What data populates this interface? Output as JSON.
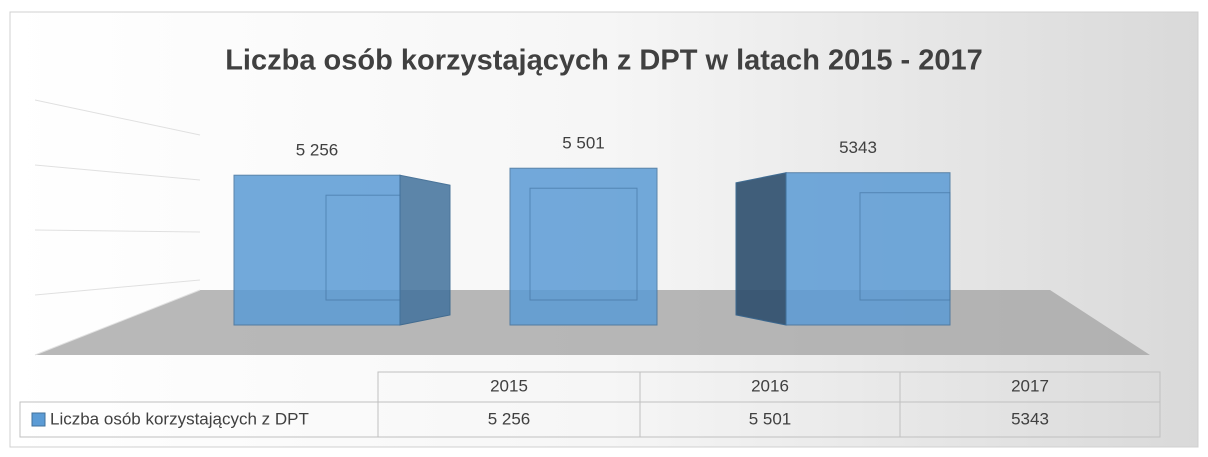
{
  "chart_data": {
    "type": "bar3d",
    "title": "Liczba osób korzystających z DPT w latach 2015 - 2017",
    "categories": [
      "2015",
      "2016",
      "2017"
    ],
    "series": [
      {
        "name": "Liczba osób korzystających z DPT",
        "color": "#5b9bd5",
        "values": [
          5256,
          5501,
          5343
        ],
        "value_labels": [
          "5 256",
          "5 501",
          "5343"
        ]
      }
    ],
    "ylim": [
      0,
      6000
    ],
    "data_table": true
  }
}
